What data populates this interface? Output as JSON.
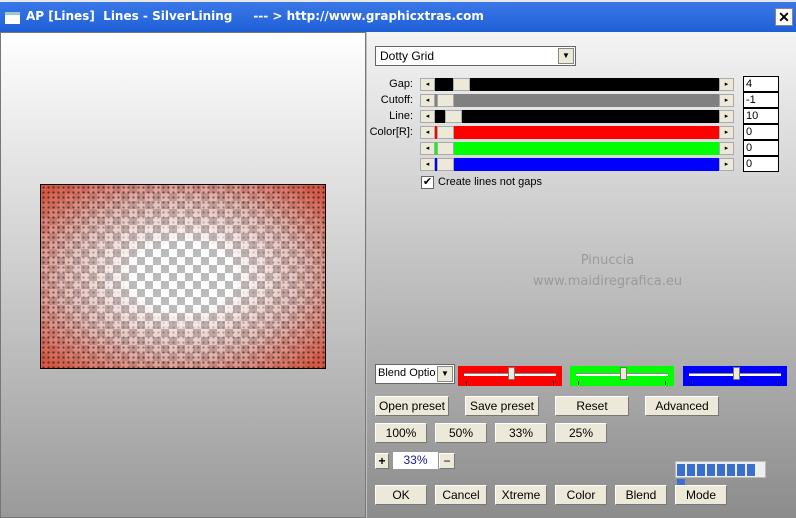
{
  "window": {
    "title": "AP [Lines]  Lines - SilverLining     --- > http://www.graphicxtras.com",
    "close": "✕"
  },
  "preset_dropdown": {
    "value": "Dotty Grid"
  },
  "sliders": [
    {
      "label": "Gap:",
      "value": "4",
      "track_color": "#000000",
      "position": 0.06
    },
    {
      "label": "Cutoff:",
      "value": "-1",
      "track_color": "#808080",
      "position": 0.0
    },
    {
      "label": "Line:",
      "value": "10",
      "track_color": "#000000",
      "position": 0.03
    },
    {
      "label": "Color[R]:",
      "value": "0",
      "track_color": "#ff0000",
      "position": 0.0
    },
    {
      "label": "",
      "value": "0",
      "track_color": "#00ff00",
      "position": 0.0
    },
    {
      "label": "",
      "value": "0",
      "track_color": "#0000ff",
      "position": 0.0
    }
  ],
  "checkbox": {
    "label": "Create lines not gaps",
    "checked": true
  },
  "watermark": {
    "line1": "Pinuccia",
    "line2": "www.maidiregrafica.eu"
  },
  "blend_dropdown": {
    "value": "Blend Optio"
  },
  "color_sliders": [
    {
      "color": "#ff0000",
      "position": 0.5
    },
    {
      "color": "#00ff00",
      "position": 0.5
    },
    {
      "color": "#0000ff",
      "position": 0.5
    }
  ],
  "buttons": {
    "open_preset": "Open preset",
    "save_preset": "Save preset",
    "reset": "Reset",
    "advanced": "Advanced",
    "z100": "100%",
    "z50": "50%",
    "z33": "33%",
    "z25": "25%",
    "ok": "OK",
    "cancel": "Cancel",
    "xtreme": "Xtreme",
    "color": "Color",
    "blend": "Blend",
    "mode": "Mode"
  },
  "zoom": {
    "plus": "+",
    "value": "33%",
    "minus": "−"
  },
  "progress": {
    "segments_filled": 9,
    "segments_total": 9
  }
}
